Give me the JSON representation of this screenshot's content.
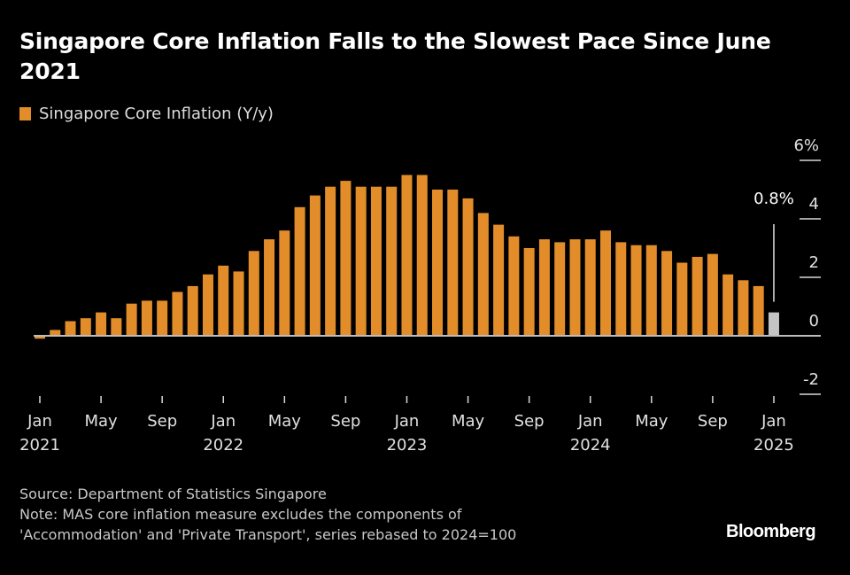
{
  "header": {
    "title": "Singapore Core Inflation Falls to the Slowest Pace Since June 2021"
  },
  "legend": {
    "label": "Singapore Core Inflation (Y/y)",
    "color": "#e38d2a"
  },
  "footer": {
    "source": "Source: Department of Statistics Singapore",
    "note_line1": "Note: MAS core inflation measure excludes the components of",
    "note_line2": "'Accommodation' and 'Private Transport', series rebased to 2024=100",
    "brand": "Bloomberg"
  },
  "chart_data": {
    "type": "bar",
    "title": "Singapore Core Inflation Falls to the Slowest Pace Since June 2021",
    "xlabel": "",
    "ylabel": "",
    "ylim": [
      -2,
      6
    ],
    "yticks": [
      {
        "value": 6,
        "label": "6%"
      },
      {
        "value": 4,
        "label": "4"
      },
      {
        "value": 2,
        "label": "2"
      },
      {
        "value": 0,
        "label": "0"
      },
      {
        "value": -2,
        "label": "-2"
      }
    ],
    "xticks": [
      {
        "index": 0,
        "month": "Jan",
        "year": "2021"
      },
      {
        "index": 4,
        "month": "May",
        "year": ""
      },
      {
        "index": 8,
        "month": "Sep",
        "year": ""
      },
      {
        "index": 12,
        "month": "Jan",
        "year": "2022"
      },
      {
        "index": 16,
        "month": "May",
        "year": ""
      },
      {
        "index": 20,
        "month": "Sep",
        "year": ""
      },
      {
        "index": 24,
        "month": "Jan",
        "year": "2023"
      },
      {
        "index": 28,
        "month": "May",
        "year": ""
      },
      {
        "index": 32,
        "month": "Sep",
        "year": ""
      },
      {
        "index": 36,
        "month": "Jan",
        "year": "2024"
      },
      {
        "index": 40,
        "month": "May",
        "year": ""
      },
      {
        "index": 44,
        "month": "Sep",
        "year": ""
      },
      {
        "index": 48,
        "month": "Jan",
        "year": "2025"
      }
    ],
    "legend": "top-left",
    "grid": false,
    "categories": [
      "2021-01",
      "2021-02",
      "2021-03",
      "2021-04",
      "2021-05",
      "2021-06",
      "2021-07",
      "2021-08",
      "2021-09",
      "2021-10",
      "2021-11",
      "2021-12",
      "2022-01",
      "2022-02",
      "2022-03",
      "2022-04",
      "2022-05",
      "2022-06",
      "2022-07",
      "2022-08",
      "2022-09",
      "2022-10",
      "2022-11",
      "2022-12",
      "2023-01",
      "2023-02",
      "2023-03",
      "2023-04",
      "2023-05",
      "2023-06",
      "2023-07",
      "2023-08",
      "2023-09",
      "2023-10",
      "2023-11",
      "2023-12",
      "2024-01",
      "2024-02",
      "2024-03",
      "2024-04",
      "2024-05",
      "2024-06",
      "2024-07",
      "2024-08",
      "2024-09",
      "2024-10",
      "2024-11",
      "2024-12",
      "2025-01"
    ],
    "series": [
      {
        "name": "Singapore Core Inflation (Y/y)",
        "color": "#e38d2a",
        "highlight_color": "#c4c4c4",
        "values": [
          -0.1,
          0.2,
          0.5,
          0.6,
          0.8,
          0.6,
          1.1,
          1.2,
          1.2,
          1.5,
          1.7,
          2.1,
          2.4,
          2.2,
          2.9,
          3.3,
          3.6,
          4.4,
          4.8,
          5.1,
          5.3,
          5.1,
          5.1,
          5.1,
          5.5,
          5.5,
          5.0,
          5.0,
          4.7,
          4.2,
          3.8,
          3.4,
          3.0,
          3.3,
          3.2,
          3.3,
          3.3,
          3.6,
          3.2,
          3.1,
          3.1,
          2.9,
          2.5,
          2.7,
          2.8,
          2.1,
          1.9,
          1.7,
          0.8
        ]
      }
    ],
    "annotations": [
      {
        "index": 48,
        "text": "0.8%"
      }
    ]
  }
}
